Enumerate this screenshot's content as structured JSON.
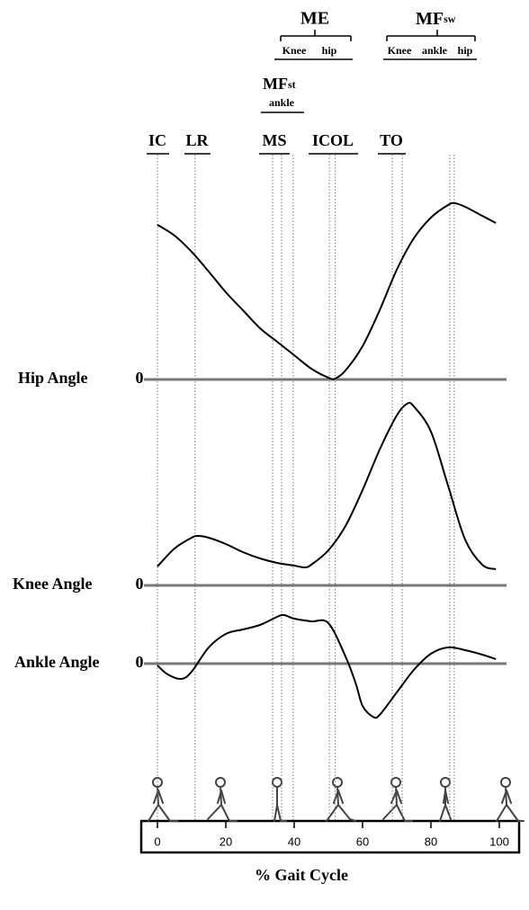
{
  "chart_data": {
    "type": "line",
    "xlabel": "% Gait Cycle",
    "xlim": [
      0,
      100
    ],
    "xticks": [
      0,
      20,
      40,
      60,
      80,
      100
    ],
    "event_lines": [
      0,
      11,
      33.7,
      36.3,
      39.7,
      50.3,
      52,
      68.7,
      71.6,
      85.5,
      86.8
    ],
    "labels": {
      "ic": "IC",
      "lr": "LR",
      "ms": "MS",
      "icol": "ICOL",
      "to": "TO",
      "me": "ME",
      "me_knee": "Knee",
      "me_hip": "hip",
      "mfst": "MF",
      "mfst_sub": "st",
      "mfst_ankle": "ankle",
      "mfsw": "MF",
      "mfsw_sub": "sw",
      "mfsw_knee": "Knee",
      "mfsw_ankle": "ankle",
      "mfsw_hip": "hip"
    },
    "series": [
      {
        "name": "Hip Angle",
        "color": "#000",
        "ylim": [
          0,
          20
        ],
        "yticks": [
          0
        ],
        "x": [
          0,
          5,
          10,
          15,
          20,
          25,
          30,
          35,
          40,
          45,
          50,
          52,
          55,
          60,
          65,
          70,
          75,
          80,
          85,
          87,
          90,
          95,
          99
        ],
        "values": [
          17.2,
          16,
          14.2,
          12,
          9.7,
          7.7,
          5.7,
          4.2,
          2.7,
          1.2,
          0.2,
          0.1,
          1,
          3.7,
          7.7,
          12.2,
          15.7,
          18,
          19.4,
          19.6,
          19.2,
          18.2,
          17.4
        ]
      },
      {
        "name": "Knee Angle",
        "color": "#000",
        "ylim": [
          0,
          22
        ],
        "yticks": [
          0
        ],
        "x": [
          0,
          5,
          10,
          12,
          15,
          20,
          25,
          30,
          35,
          40,
          43,
          45,
          50,
          55,
          60,
          65,
          70,
          73,
          75,
          80,
          85,
          90,
          95,
          99
        ],
        "values": [
          2.1,
          4.1,
          5.3,
          5.5,
          5.3,
          4.6,
          3.7,
          3.0,
          2.5,
          2.2,
          2.0,
          2.3,
          3.9,
          6.6,
          10.6,
          15.1,
          18.9,
          20.2,
          19.9,
          17.1,
          11.1,
          5.1,
          2.3,
          1.8
        ]
      },
      {
        "name": "Ankle Angle",
        "color": "#000",
        "ylim": [
          -7,
          6
        ],
        "yticks": [
          0
        ],
        "x": [
          0,
          3,
          7,
          10,
          15,
          20,
          25,
          30,
          35,
          37,
          40,
          45,
          50,
          55,
          58,
          60,
          63,
          65,
          70,
          75,
          80,
          85,
          90,
          95,
          99
        ],
        "values": [
          -0.2,
          -1.2,
          -1.7,
          -0.9,
          1.8,
          3.3,
          3.8,
          4.3,
          5.2,
          5.4,
          5.0,
          4.7,
          4.5,
          0.8,
          -2.2,
          -4.7,
          -5.9,
          -5.7,
          -3.2,
          -0.7,
          1.1,
          1.8,
          1.5,
          1.0,
          0.5
        ]
      }
    ]
  }
}
